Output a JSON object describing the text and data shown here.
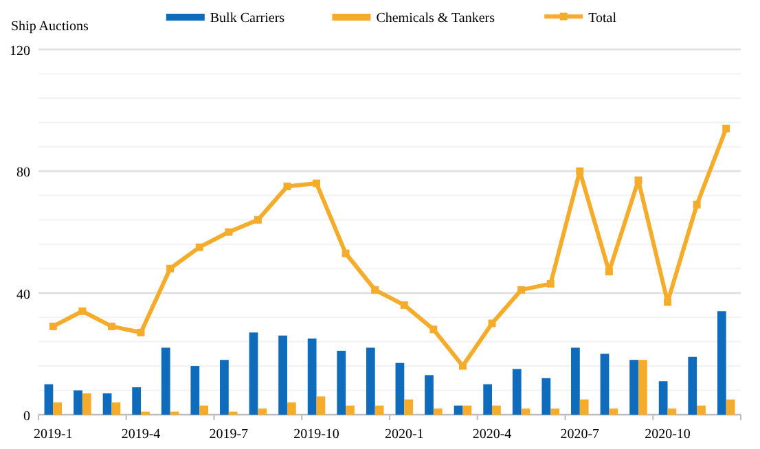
{
  "chart_data": {
    "type": "bar",
    "ylabel": "Ship Auctions",
    "categories": [
      "2019-1",
      null,
      null,
      "2019-4",
      null,
      null,
      "2019-7",
      null,
      null,
      "2019-10",
      null,
      null,
      "2020-1",
      null,
      null,
      "2020-4",
      null,
      null,
      "2020-7",
      null,
      null,
      "2020-10",
      null,
      null
    ],
    "series": [
      {
        "name": "Bulk Carriers",
        "color": "#0f6cbd",
        "values": [
          10,
          8,
          7,
          9,
          22,
          16,
          18,
          27,
          26,
          25,
          21,
          22,
          17,
          13,
          3,
          10,
          15,
          12,
          22,
          20,
          18,
          11,
          19,
          34
        ]
      },
      {
        "name": "Chemicals & Tankers",
        "color": "#f5ac2a",
        "values": [
          4,
          7,
          4,
          1,
          1,
          3,
          1,
          2,
          4,
          6,
          3,
          3,
          5,
          2,
          3,
          3,
          2,
          2,
          5,
          2,
          18,
          2,
          3,
          5
        ]
      },
      {
        "name": "Total",
        "type": "line",
        "color": "#f5ac2a",
        "marker": "square",
        "values": [
          29,
          34,
          29,
          27,
          48,
          55,
          60,
          64,
          75,
          76,
          53,
          41,
          36,
          28,
          16,
          30,
          41,
          43,
          80,
          47,
          77,
          37,
          69,
          94
        ]
      }
    ],
    "ylim": [
      0,
      120
    ],
    "yticks": [
      0,
      {
        "value": 8,
        "label": null
      },
      {
        "value": 16,
        "label": null
      },
      {
        "value": 24,
        "label": null
      },
      {
        "value": 32,
        "label": null
      },
      40,
      {
        "value": 48,
        "label": null
      },
      {
        "value": 56,
        "label": null
      },
      {
        "value": 64,
        "label": null
      },
      {
        "value": 72,
        "label": null
      },
      80,
      {
        "value": 88,
        "label": null
      },
      {
        "value": 96,
        "label": null
      },
      {
        "value": 104,
        "label": null
      },
      {
        "value": 112,
        "label": null
      },
      120
    ],
    "grid": "y",
    "legend": "top"
  }
}
